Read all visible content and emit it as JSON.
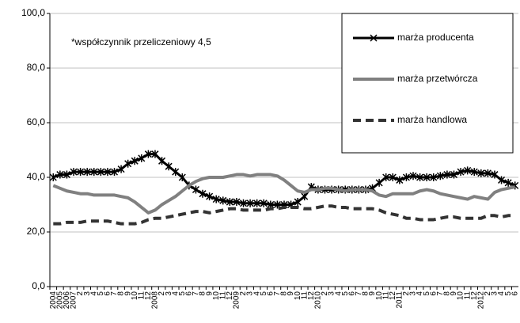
{
  "chart_data": {
    "type": "line",
    "annotation": "*współczynnik przeliczeniowy 4,5",
    "categories": [
      "2004",
      "2005",
      "2006",
      "2007",
      "2",
      "3",
      "4",
      "5",
      "6",
      "7",
      "8",
      "9",
      "10",
      "11",
      "12",
      "2008",
      "2",
      "3",
      "4",
      "5",
      "6",
      "7",
      "8",
      "9",
      "10",
      "11",
      "12",
      "2009",
      "2",
      "3",
      "4",
      "5",
      "6",
      "7",
      "8",
      "9",
      "10",
      "11",
      "12",
      "2010",
      "2",
      "3",
      "4",
      "5",
      "6",
      "7",
      "8",
      "9",
      "10",
      "11",
      "12",
      "2011",
      "2",
      "3",
      "4",
      "5",
      "6",
      "7",
      "8",
      "9",
      "10",
      "11",
      "12",
      "2012",
      "2",
      "3",
      "4",
      "5",
      "6"
    ],
    "series": [
      {
        "name": "marża producenta",
        "color": "#000000",
        "style": "solid-star",
        "values": [
          40,
          41,
          41,
          42,
          42,
          42,
          42,
          42,
          42,
          42,
          43,
          45,
          46,
          47,
          48.5,
          48.5,
          46,
          44,
          42,
          40,
          37,
          35.5,
          34,
          33,
          32,
          31.5,
          31,
          31,
          30.5,
          30.5,
          30.5,
          30.5,
          30,
          30,
          30,
          30,
          31,
          33,
          36.5,
          35.5,
          35.5,
          35.5,
          35.5,
          35.5,
          35.5,
          35.5,
          35.5,
          36,
          38,
          40,
          40,
          39,
          40,
          40.5,
          40,
          40,
          40,
          40.5,
          41,
          41,
          42,
          42.5,
          42,
          41.5,
          41.5,
          41,
          39,
          38,
          37
        ]
      },
      {
        "name": "marża przetwórcza",
        "color": "#808080",
        "style": "solid",
        "values": [
          37,
          36,
          35,
          34.5,
          34,
          34,
          33.5,
          33.5,
          33.5,
          33.5,
          33,
          32.5,
          31,
          29,
          27,
          28,
          30,
          31.5,
          33,
          35,
          37,
          38.5,
          39.5,
          40,
          40,
          40,
          40.5,
          41,
          41,
          40.5,
          41,
          41,
          41,
          40.5,
          39,
          37,
          35,
          34.5,
          35.5,
          35.5,
          36,
          36,
          35.5,
          35,
          35.5,
          35.5,
          35.5,
          35,
          33.5,
          33,
          34,
          34,
          34,
          34,
          35,
          35.5,
          35,
          34,
          33.5,
          33,
          32.5,
          32,
          33,
          32.5,
          32,
          34.5,
          35.5,
          36,
          36.5
        ]
      },
      {
        "name": "marża handlowa",
        "color": "#333333",
        "style": "dashed",
        "values": [
          23,
          23,
          23.5,
          23.5,
          23.5,
          24,
          24,
          24,
          24,
          23.5,
          23,
          23,
          23,
          23.5,
          24.5,
          25,
          25,
          25.5,
          26,
          26.5,
          27,
          27.5,
          27.5,
          27,
          27.5,
          28,
          28.5,
          28.5,
          28,
          28,
          28,
          28,
          28.5,
          28.5,
          29,
          29,
          29,
          28.5,
          28.5,
          29,
          29.5,
          29.5,
          29,
          29,
          28.5,
          28.5,
          28.5,
          28.5,
          28,
          27,
          26.5,
          26,
          25,
          25,
          24.5,
          24.5,
          24.5,
          25,
          25.5,
          25.5,
          25,
          25,
          25,
          25,
          26,
          26,
          25.5,
          26,
          26
        ]
      }
    ],
    "ylim": [
      0,
      100
    ],
    "yticks": [
      {
        "value": 0,
        "label": "0,0"
      },
      {
        "value": 20,
        "label": "20,0"
      },
      {
        "value": 40,
        "label": "40,0"
      },
      {
        "value": 60,
        "label": "60,0"
      },
      {
        "value": 80,
        "label": "80,0"
      },
      {
        "value": 100,
        "label": "100,0"
      }
    ],
    "grid": true,
    "legend": "top-right"
  }
}
